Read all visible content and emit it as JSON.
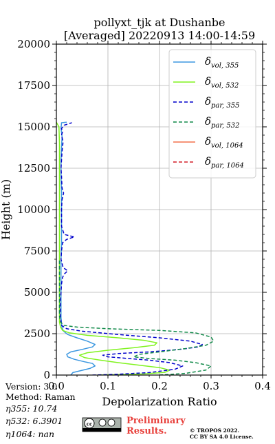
{
  "header": {
    "title_line1": "pollyxt_tjk at Dushanbe",
    "title_line2": "[Averaged] 20220913 14:00-14:59"
  },
  "footer": {
    "version": "Version: 3.0",
    "method": "Method: Raman",
    "eta355": "η355:  10.74",
    "eta532": "η532: 6.3901",
    "eta1064": "η1064:    nan",
    "license_badge": "cc",
    "preliminary_line1": "Preliminary",
    "preliminary_line2": "Results.",
    "credit_line1": "© TROPOS 2022.",
    "credit_line2": "CC BY SA 4.0 License."
  },
  "chart_data": {
    "type": "line",
    "title": "pollyxt_tjk at Dushanbe [Averaged] 20220913 14:00-14:59",
    "xlabel": "Depolarization Ratio",
    "ylabel": "Height (m)",
    "xlim": [
      0.0,
      0.4
    ],
    "ylim": [
      0,
      20000
    ],
    "xticks": [
      {
        "value": 0.0,
        "label": "0.0"
      },
      {
        "value": 0.1,
        "label": "0.1"
      },
      {
        "value": 0.2,
        "label": "0.2"
      },
      {
        "value": 0.3,
        "label": "0.3"
      },
      {
        "value": 0.4,
        "label": "0.4"
      }
    ],
    "yticks": [
      {
        "value": 0,
        "label": "0"
      },
      {
        "value": 2500,
        "label": "2500"
      },
      {
        "value": 5000,
        "label": "5000"
      },
      {
        "value": 7500,
        "label": "7500"
      },
      {
        "value": 10000,
        "label": "10000"
      },
      {
        "value": 12500,
        "label": "12500"
      },
      {
        "value": 15000,
        "label": "15000"
      },
      {
        "value": 17500,
        "label": "17500"
      },
      {
        "value": 20000,
        "label": "20000"
      }
    ],
    "grid": true,
    "legend_position": "top-right",
    "series": [
      {
        "id": "vol355",
        "legend_main": "δ",
        "legend_sub": "vol, 355",
        "color": "#3b97e0",
        "style": "solid",
        "points": [
          [
            0.028,
            0
          ],
          [
            0.032,
            150
          ],
          [
            0.045,
            250
          ],
          [
            0.065,
            400
          ],
          [
            0.075,
            550
          ],
          [
            0.07,
            700
          ],
          [
            0.055,
            800
          ],
          [
            0.035,
            950
          ],
          [
            0.022,
            1100
          ],
          [
            0.02,
            1250
          ],
          [
            0.028,
            1400
          ],
          [
            0.05,
            1550
          ],
          [
            0.07,
            1700
          ],
          [
            0.075,
            1850
          ],
          [
            0.06,
            2050
          ],
          [
            0.04,
            2250
          ],
          [
            0.022,
            2450
          ],
          [
            0.014,
            2650
          ],
          [
            0.011,
            2850
          ],
          [
            0.01,
            3100
          ],
          [
            0.009,
            3500
          ],
          [
            0.009,
            4000
          ],
          [
            0.009,
            5000
          ],
          [
            0.009,
            6000
          ],
          [
            0.009,
            7000
          ],
          [
            0.01,
            8000
          ],
          [
            0.01,
            9000
          ],
          [
            0.01,
            10000
          ],
          [
            0.01,
            11000
          ],
          [
            0.009,
            12000
          ],
          [
            0.009,
            13000
          ],
          [
            0.01,
            13800
          ],
          [
            0.011,
            14400
          ],
          [
            0.009,
            14900
          ],
          [
            0.01,
            15250
          ],
          [
            0.02,
            15280
          ]
        ]
      },
      {
        "id": "vol532",
        "legend_main": "δ",
        "legend_sub": "vol, 532",
        "color": "#80f31f",
        "style": "solid",
        "points": [
          [
            0.08,
            0
          ],
          [
            0.17,
            70
          ],
          [
            0.21,
            160
          ],
          [
            0.22,
            300
          ],
          [
            0.2,
            450
          ],
          [
            0.16,
            600
          ],
          [
            0.12,
            750
          ],
          [
            0.085,
            900
          ],
          [
            0.055,
            1050
          ],
          [
            0.045,
            1200
          ],
          [
            0.06,
            1350
          ],
          [
            0.1,
            1500
          ],
          [
            0.15,
            1650
          ],
          [
            0.19,
            1800
          ],
          [
            0.195,
            1950
          ],
          [
            0.17,
            2100
          ],
          [
            0.12,
            2250
          ],
          [
            0.06,
            2400
          ],
          [
            0.025,
            2550
          ],
          [
            0.012,
            2700
          ],
          [
            0.008,
            2900
          ],
          [
            0.006,
            3200
          ],
          [
            0.006,
            4000
          ],
          [
            0.006,
            5000
          ],
          [
            0.006,
            6000
          ],
          [
            0.006,
            7000
          ],
          [
            0.006,
            8000
          ],
          [
            0.006,
            9000
          ],
          [
            0.006,
            10000
          ],
          [
            0.006,
            11000
          ],
          [
            0.006,
            12000
          ],
          [
            0.006,
            13000
          ],
          [
            0.006,
            14000
          ],
          [
            0.005,
            15000
          ],
          [
            0.0,
            15280
          ]
        ]
      },
      {
        "id": "par355",
        "legend_main": "δ",
        "legend_sub": "par, 355",
        "color": "#0000cc",
        "style": "dashed",
        "points": [
          [
            0.07,
            0
          ],
          [
            0.12,
            50
          ],
          [
            0.18,
            150
          ],
          [
            0.23,
            350
          ],
          [
            0.245,
            550
          ],
          [
            0.22,
            750
          ],
          [
            0.18,
            900
          ],
          [
            0.14,
            1000
          ],
          [
            0.1,
            1100
          ],
          [
            0.09,
            1200
          ],
          [
            0.12,
            1300
          ],
          [
            0.18,
            1400
          ],
          [
            0.24,
            1550
          ],
          [
            0.275,
            1700
          ],
          [
            0.283,
            1850
          ],
          [
            0.26,
            2050
          ],
          [
            0.2,
            2250
          ],
          [
            0.12,
            2450
          ],
          [
            0.05,
            2650
          ],
          [
            0.02,
            2800
          ],
          [
            0.01,
            3000
          ],
          [
            0.008,
            3500
          ],
          [
            0.008,
            4000
          ],
          [
            0.008,
            4500
          ],
          [
            0.009,
            5000
          ],
          [
            0.01,
            5500
          ],
          [
            0.012,
            5900
          ],
          [
            0.015,
            6100
          ],
          [
            0.022,
            6300
          ],
          [
            0.013,
            6500
          ],
          [
            0.009,
            7000
          ],
          [
            0.01,
            7500
          ],
          [
            0.012,
            8000
          ],
          [
            0.02,
            8200
          ],
          [
            0.035,
            8350
          ],
          [
            0.015,
            8500
          ],
          [
            0.01,
            9000
          ],
          [
            0.01,
            9500
          ],
          [
            0.01,
            10000
          ],
          [
            0.011,
            10600
          ],
          [
            0.014,
            11000
          ],
          [
            0.011,
            11300
          ],
          [
            0.01,
            12000
          ],
          [
            0.009,
            12500
          ],
          [
            0.01,
            13000
          ],
          [
            0.011,
            13500
          ],
          [
            0.013,
            14100
          ],
          [
            0.01,
            14500
          ],
          [
            0.012,
            14700
          ],
          [
            0.01,
            14900
          ],
          [
            0.015,
            15100
          ],
          [
            0.025,
            15200
          ],
          [
            0.03,
            15250
          ]
        ]
      },
      {
        "id": "par532",
        "legend_main": "δ",
        "legend_sub": "par, 532",
        "color": "#128a4a",
        "style": "dashed",
        "points": [
          [
            0.2,
            0
          ],
          [
            0.25,
            100
          ],
          [
            0.29,
            300
          ],
          [
            0.3,
            550
          ],
          [
            0.27,
            750
          ],
          [
            0.23,
            900
          ],
          [
            0.18,
            1000
          ],
          [
            0.15,
            1100
          ],
          [
            0.16,
            1250
          ],
          [
            0.2,
            1400
          ],
          [
            0.25,
            1600
          ],
          [
            0.29,
            1800
          ],
          [
            0.305,
            2050
          ],
          [
            0.3,
            2300
          ],
          [
            0.27,
            2550
          ],
          [
            0.2,
            2700
          ],
          [
            0.1,
            2800
          ],
          [
            0.04,
            2900
          ],
          [
            0.015,
            3000
          ],
          [
            0.008,
            3200
          ],
          [
            0.006,
            3600
          ],
          [
            0.006,
            4000
          ],
          [
            0.006,
            4500
          ],
          [
            0.006,
            5000
          ],
          [
            0.006,
            5500
          ],
          [
            0.006,
            6000
          ],
          [
            0.006,
            6500
          ],
          [
            0.006,
            7000
          ]
        ]
      },
      {
        "id": "vol1064",
        "legend_main": "δ",
        "legend_sub": "vol, 1064",
        "color": "#f4714c",
        "style": "solid",
        "points": []
      },
      {
        "id": "par1064",
        "legend_main": "δ",
        "legend_sub": "par, 1064",
        "color": "#d4202a",
        "style": "dashed",
        "points": []
      }
    ]
  }
}
